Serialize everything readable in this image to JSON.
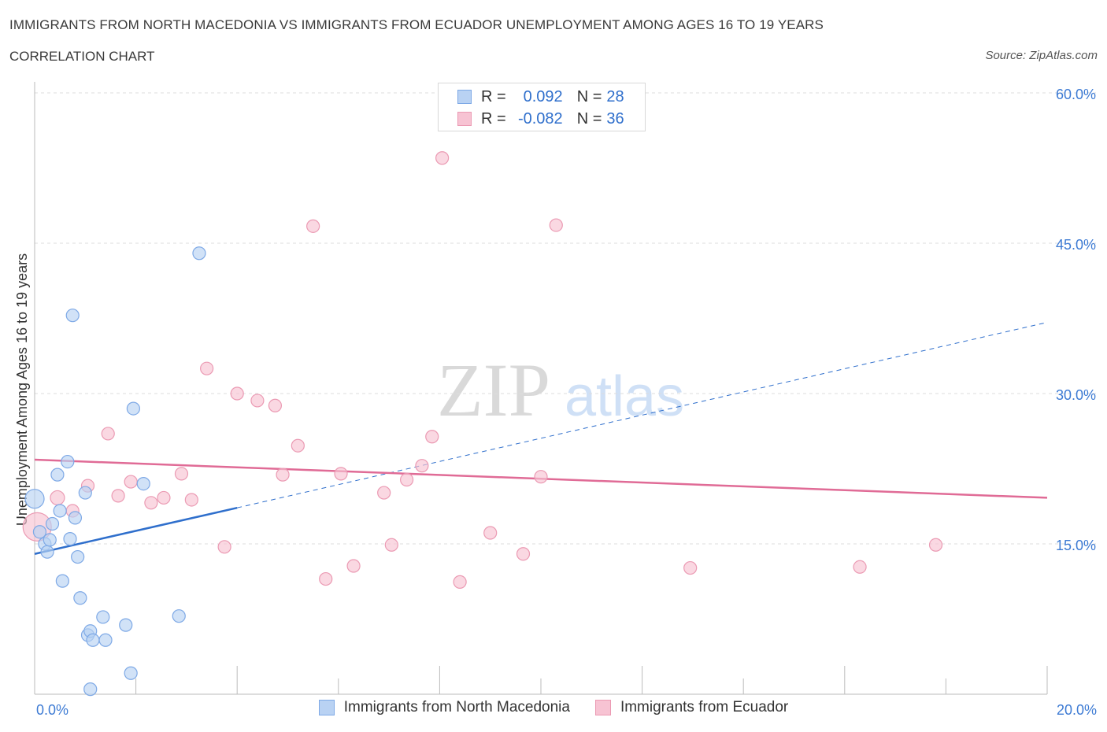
{
  "title": "IMMIGRANTS FROM NORTH MACEDONIA VS IMMIGRANTS FROM ECUADOR UNEMPLOYMENT AMONG AGES 16 TO 19 YEARS",
  "subtitle": "CORRELATION CHART",
  "source": "Source: ZipAtlas.com",
  "watermark": {
    "zip": "ZIP",
    "atlas": "atlas"
  },
  "colors": {
    "blue_fill": "#b9d2f3",
    "blue_stroke": "#7ea9e6",
    "blue_line": "#2f6fcc",
    "pink_fill": "#f7c3d3",
    "pink_stroke": "#eb9ab3",
    "pink_line": "#e06b96",
    "axis_text": "#3d7bd4",
    "grid": "#dddddd"
  },
  "legend_top": {
    "rows": [
      {
        "r_label": "R =",
        "r_value": "0.092",
        "n_label": "N =",
        "n_value": "28"
      },
      {
        "r_label": "R =",
        "r_value": "-0.082",
        "n_label": "N =",
        "n_value": "36"
      }
    ]
  },
  "legend_bottom": {
    "items": [
      {
        "label": "Immigrants from North Macedonia"
      },
      {
        "label": "Immigrants from Ecuador"
      }
    ]
  },
  "chart_data": {
    "type": "scatter",
    "ylabel": "Unemployment Among Ages 16 to 19 years",
    "x_tick_labels": [
      "0.0%",
      "20.0%"
    ],
    "y_tick_labels": [
      "15.0%",
      "30.0%",
      "45.0%",
      "60.0%"
    ],
    "y_ticks": [
      15,
      30,
      45,
      60
    ],
    "xlim": [
      0,
      20
    ],
    "ylim": [
      0,
      60
    ],
    "grid": true,
    "legend_position": "top-center",
    "series": [
      {
        "name": "Immigrants from North Macedonia",
        "color": "blue",
        "points": [
          [
            0.0,
            19.5,
            12
          ],
          [
            0.1,
            16.2,
            8
          ],
          [
            0.2,
            15.0,
            8
          ],
          [
            0.25,
            14.2,
            8
          ],
          [
            0.3,
            15.4,
            8
          ],
          [
            0.35,
            17.0,
            8
          ],
          [
            0.45,
            21.9,
            8
          ],
          [
            0.5,
            18.3,
            8
          ],
          [
            0.55,
            11.3,
            8
          ],
          [
            0.65,
            23.2,
            8
          ],
          [
            0.7,
            15.5,
            8
          ],
          [
            0.75,
            37.8,
            8
          ],
          [
            0.8,
            17.6,
            8
          ],
          [
            0.85,
            13.7,
            8
          ],
          [
            0.9,
            9.6,
            8
          ],
          [
            1.0,
            20.1,
            8
          ],
          [
            1.05,
            5.9,
            8
          ],
          [
            1.1,
            6.3,
            8
          ],
          [
            1.15,
            5.4,
            8
          ],
          [
            1.4,
            5.4,
            8
          ],
          [
            1.35,
            7.7,
            8
          ],
          [
            1.8,
            6.9,
            8
          ],
          [
            1.9,
            2.1,
            8
          ],
          [
            1.95,
            28.5,
            8
          ],
          [
            2.15,
            21.0,
            8
          ],
          [
            2.85,
            7.8,
            8
          ],
          [
            3.25,
            44.0,
            8
          ],
          [
            1.1,
            0.5,
            8
          ]
        ],
        "trend": {
          "x0": 0,
          "y0": 14.0,
          "x1": 4.0,
          "y1": 18.6,
          "extend_to_x": 20,
          "extend_to_y": 37.1
        }
      },
      {
        "name": "Immigrants from Ecuador",
        "color": "pink",
        "points": [
          [
            0.05,
            16.7,
            18
          ],
          [
            0.45,
            19.6,
            9
          ],
          [
            0.75,
            18.3,
            8
          ],
          [
            1.05,
            20.8,
            8
          ],
          [
            1.45,
            26.0,
            8
          ],
          [
            1.65,
            19.8,
            8
          ],
          [
            1.9,
            21.2,
            8
          ],
          [
            2.3,
            19.1,
            8
          ],
          [
            2.55,
            19.6,
            8
          ],
          [
            2.9,
            22.0,
            8
          ],
          [
            3.1,
            19.4,
            8
          ],
          [
            3.4,
            32.5,
            8
          ],
          [
            3.75,
            14.7,
            8
          ],
          [
            4.0,
            30.0,
            8
          ],
          [
            4.4,
            29.3,
            8
          ],
          [
            4.75,
            28.8,
            8
          ],
          [
            4.9,
            21.9,
            8
          ],
          [
            5.2,
            24.8,
            8
          ],
          [
            5.5,
            46.7,
            8
          ],
          [
            5.75,
            11.5,
            8
          ],
          [
            6.05,
            22.0,
            8
          ],
          [
            6.3,
            12.8,
            8
          ],
          [
            6.9,
            20.1,
            8
          ],
          [
            7.05,
            14.9,
            8
          ],
          [
            7.35,
            21.4,
            8
          ],
          [
            7.65,
            22.8,
            8
          ],
          [
            7.85,
            25.7,
            8
          ],
          [
            8.05,
            53.5,
            8
          ],
          [
            8.4,
            11.2,
            8
          ],
          [
            9.0,
            16.1,
            8
          ],
          [
            9.65,
            14.0,
            8
          ],
          [
            10.0,
            21.7,
            8
          ],
          [
            10.3,
            46.8,
            8
          ],
          [
            12.95,
            12.6,
            8
          ],
          [
            16.3,
            12.7,
            8
          ],
          [
            17.8,
            14.9,
            8
          ]
        ],
        "trend": {
          "x0": 0,
          "y0": 23.4,
          "x1": 20,
          "y1": 19.6
        }
      }
    ]
  }
}
